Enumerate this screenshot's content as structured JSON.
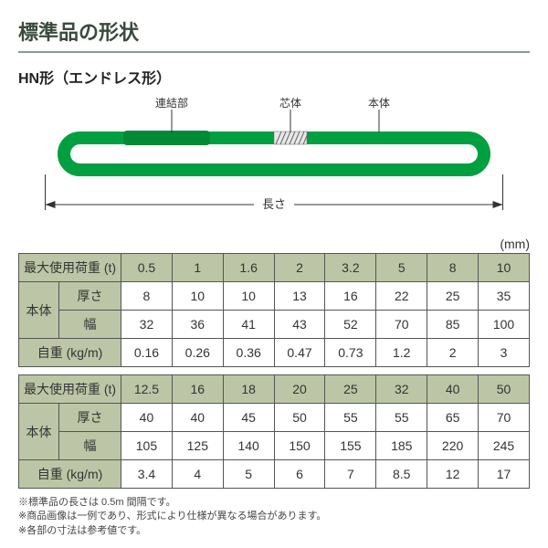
{
  "title": "標準品の形状",
  "subtitle": "HN形（エンドレス形）",
  "unit_label": "(mm)",
  "diagram": {
    "labels": {
      "joint": "連結部",
      "core": "芯体",
      "body": "本体",
      "length": "長さ"
    },
    "colors": {
      "sling": "#00a040",
      "joint": "#008a36",
      "core_hatch": "#666",
      "arrow": "#333",
      "text": "#333"
    }
  },
  "row_labels": {
    "max_load": "最大使用荷重 (t)",
    "body": "本体",
    "thickness": "厚さ",
    "width": "幅",
    "self_weight": "自重 (kg/m)"
  },
  "table1": {
    "max_load": [
      "0.5",
      "1",
      "1.6",
      "2",
      "3.2",
      "5",
      "8",
      "10"
    ],
    "thickness": [
      "8",
      "10",
      "10",
      "13",
      "16",
      "22",
      "25",
      "35"
    ],
    "width": [
      "32",
      "36",
      "41",
      "43",
      "52",
      "70",
      "85",
      "100"
    ],
    "self_weight": [
      "0.16",
      "0.26",
      "0.36",
      "0.47",
      "0.73",
      "1.2",
      "2",
      "3"
    ]
  },
  "table2": {
    "max_load": [
      "12.5",
      "16",
      "18",
      "20",
      "25",
      "32",
      "40",
      "50"
    ],
    "thickness": [
      "40",
      "40",
      "45",
      "50",
      "55",
      "55",
      "65",
      "70"
    ],
    "width": [
      "105",
      "125",
      "140",
      "150",
      "155",
      "185",
      "220",
      "245"
    ],
    "self_weight": [
      "3.4",
      "4",
      "5",
      "6",
      "7",
      "8.5",
      "12",
      "17"
    ]
  },
  "notes": [
    "※標準品の長さは 0.5m 間隔です。",
    "※商品画像は一例であり、形式により仕様が異なる場合があります。",
    "※各部の寸法は参考値です。"
  ]
}
